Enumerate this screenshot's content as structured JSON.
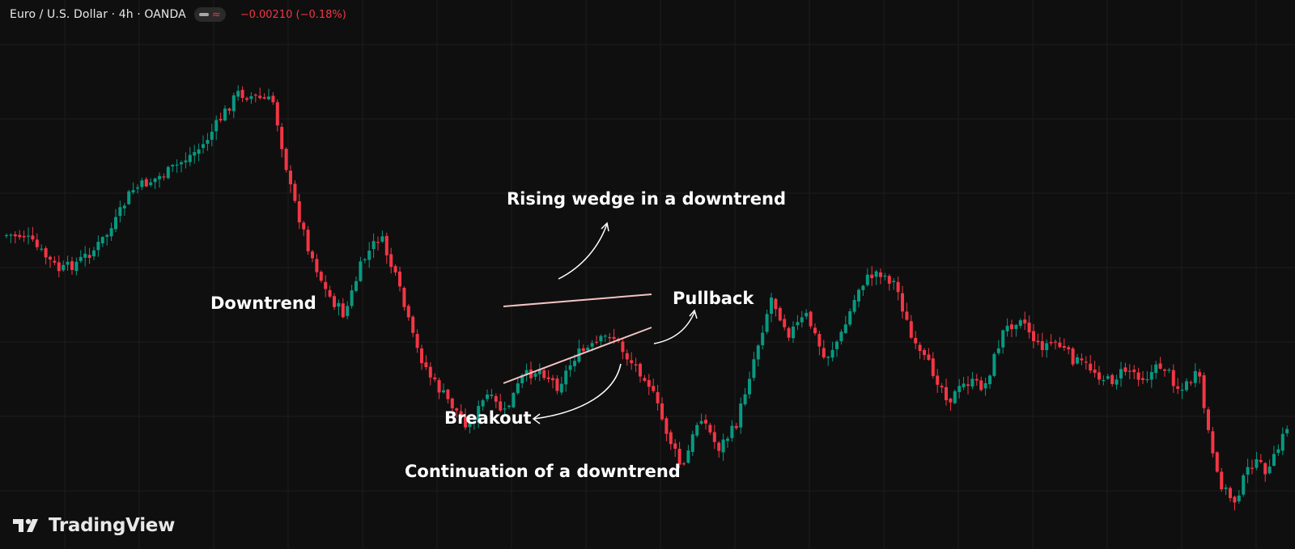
{
  "header": {
    "symbol": "Euro / U.S. Dollar · 4h · OANDA",
    "pill_icon": "line-dash-icon",
    "pill_glyph": "≈",
    "change": "−0.00210 (−0.18%)"
  },
  "annotations": {
    "rising_wedge": "Rising wedge in a downtrend",
    "downtrend": "Downtrend",
    "pullback": "Pullback",
    "breakout": "Breakout",
    "continuation": "Continuation of a downtrend"
  },
  "brand": {
    "name": "TradingView",
    "logo": "tradingview-logo"
  },
  "colors": {
    "background": "#0f0f0f",
    "grid": "#1c1c1c",
    "bullish": "#089981",
    "bearish": "#f23645",
    "wedge_line": "#f4c2c2",
    "annotation": "#ffffff"
  },
  "chart_data": {
    "type": "candlestick",
    "title": "Euro / U.S. Dollar · 4h · OANDA",
    "xlabel": "",
    "ylabel": "",
    "grid": true,
    "trendline_points": [
      0.58,
      0.58,
      0.54,
      0.5,
      0.52,
      0.55,
      0.6,
      0.68,
      0.7,
      0.72,
      0.75,
      0.78,
      0.84,
      0.9,
      0.89,
      0.88,
      0.68,
      0.55,
      0.45,
      0.4,
      0.52,
      0.58,
      0.47,
      0.33,
      0.25,
      0.2,
      0.15,
      0.22,
      0.18,
      0.26,
      0.28,
      0.24,
      0.31,
      0.33,
      0.36,
      0.3,
      0.26,
      0.15,
      0.05,
      0.18,
      0.1,
      0.15,
      0.3,
      0.44,
      0.36,
      0.4,
      0.3,
      0.36,
      0.47,
      0.5,
      0.47,
      0.33,
      0.28,
      0.21,
      0.25,
      0.24,
      0.36,
      0.4,
      0.33,
      0.34,
      0.3,
      0.28,
      0.25,
      0.28,
      0.26,
      0.29,
      0.23,
      0.27,
      0.04,
      -0.02,
      0.07,
      0.05,
      0.15
    ],
    "note": "Series drawn as normalized price levels (0 = low of range, 1 = high of range); price axis not shown in image"
  }
}
